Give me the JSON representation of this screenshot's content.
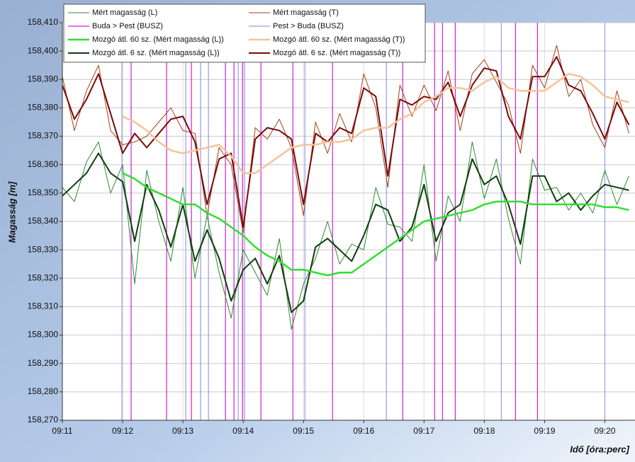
{
  "chart_data": {
    "type": "line",
    "y_label": "Magasság [m]",
    "x_label": "Idő [óra:perc]",
    "xlim": [
      11,
      20.5
    ],
    "ylim": [
      158.27,
      158.41
    ],
    "grid": true,
    "legend": "top-left",
    "xticks": [
      {
        "value": 11,
        "label": "09:11"
      },
      {
        "value": 12,
        "label": "09:12"
      },
      {
        "value": 13,
        "label": "09:13"
      },
      {
        "value": 14,
        "label": "09:14"
      },
      {
        "value": 15,
        "label": "09:15"
      },
      {
        "value": 16,
        "label": "09:16"
      },
      {
        "value": 17,
        "label": "09:17"
      },
      {
        "value": 18,
        "label": "09:18"
      },
      {
        "value": 19,
        "label": "09:19"
      },
      {
        "value": 20,
        "label": "09:20"
      }
    ],
    "yticks": [
      {
        "value": 158.41,
        "label": "158,410"
      },
      {
        "value": 158.4,
        "label": "158,400"
      },
      {
        "value": 158.39,
        "label": "158,390"
      },
      {
        "value": 158.38,
        "label": "158,380"
      },
      {
        "value": 158.37,
        "label": "158,370"
      },
      {
        "value": 158.36,
        "label": "158,360"
      },
      {
        "value": 158.35,
        "label": "158,350"
      },
      {
        "value": 158.34,
        "label": "158,340"
      },
      {
        "value": 158.33,
        "label": "158,330"
      },
      {
        "value": 158.32,
        "label": "158,320"
      },
      {
        "value": 158.31,
        "label": "158,310"
      },
      {
        "value": 158.3,
        "label": "158,300"
      },
      {
        "value": 158.29,
        "label": "158,290"
      },
      {
        "value": 158.28,
        "label": "158,280"
      },
      {
        "value": 158.27,
        "label": "158,270"
      }
    ],
    "x": [
      11,
      11.2,
      11.4,
      11.6,
      11.8,
      12,
      12.2,
      12.4,
      12.6,
      12.8,
      13,
      13.2,
      13.4,
      13.6,
      13.8,
      14,
      14.2,
      14.4,
      14.6,
      14.8,
      15,
      15.2,
      15.4,
      15.6,
      15.8,
      16,
      16.2,
      16.4,
      16.6,
      16.8,
      17,
      17.2,
      17.4,
      17.6,
      17.8,
      18,
      18.2,
      18.4,
      18.6,
      18.8,
      19,
      19.2,
      19.4,
      19.6,
      19.8,
      20,
      20.2,
      20.4
    ],
    "series": [
      {
        "name": "Mért magasság (L)",
        "color": "#2e8b2e",
        "line_width": 1,
        "values": [
          158.352,
          158.347,
          158.361,
          158.368,
          158.35,
          158.36,
          158.318,
          158.358,
          158.34,
          158.326,
          158.352,
          158.32,
          158.342,
          158.322,
          158.306,
          158.33,
          158.322,
          158.314,
          158.334,
          158.302,
          158.318,
          158.327,
          158.34,
          158.325,
          158.332,
          158.33,
          158.352,
          158.339,
          158.338,
          158.333,
          158.36,
          158.326,
          158.349,
          158.34,
          158.368,
          158.348,
          158.362,
          158.341,
          158.325,
          158.362,
          158.351,
          158.352,
          158.344,
          158.35,
          158.343,
          158.358,
          158.346,
          158.356
        ]
      },
      {
        "name": "Mért magasság (T)",
        "color": "#a0401a",
        "line_width": 1,
        "values": [
          158.391,
          158.372,
          158.386,
          158.395,
          158.372,
          158.367,
          158.368,
          158.37,
          158.375,
          158.38,
          158.372,
          158.371,
          158.342,
          158.366,
          158.36,
          158.336,
          158.373,
          158.369,
          158.376,
          158.366,
          158.342,
          158.375,
          158.364,
          158.378,
          158.368,
          158.392,
          158.38,
          158.352,
          158.388,
          158.377,
          158.388,
          158.379,
          158.393,
          158.372,
          158.392,
          158.397,
          158.389,
          158.381,
          158.364,
          158.395,
          158.387,
          158.402,
          158.384,
          158.39,
          158.374,
          158.366,
          158.386,
          158.371
        ]
      },
      {
        "name": "Buda > Pest (BUSZ)",
        "color": "#d020d0",
        "kind": "vline",
        "x": [
          12.141,
          12.729,
          13.141,
          13.706,
          13.847,
          13.988,
          14.294,
          14.824,
          15.482,
          16.647,
          17.176,
          17.306,
          17.518,
          18.518,
          18.882
        ]
      },
      {
        "name": "Pest > Buda (BUSZ)",
        "color": "#9a9ae6",
        "kind": "vline",
        "x": [
          11.988,
          13.047,
          13.294,
          13.424,
          13.918,
          14.024,
          15.024,
          16.376,
          18.282,
          20.0
        ]
      },
      {
        "name": "Mozgó átl. 60 sz. (Mért magasság (L))",
        "color": "#33dd33",
        "line_width": 2.5,
        "values": [
          null,
          null,
          null,
          null,
          null,
          158.357,
          158.355,
          158.352,
          158.35,
          158.348,
          158.346,
          158.346,
          158.343,
          158.341,
          158.338,
          158.335,
          158.331,
          158.328,
          158.326,
          158.323,
          158.323,
          158.322,
          158.321,
          158.322,
          158.322,
          158.325,
          158.328,
          158.331,
          158.334,
          158.337,
          158.34,
          158.341,
          158.342,
          158.343,
          158.344,
          158.346,
          158.347,
          158.347,
          158.347,
          158.346,
          158.346,
          158.346,
          158.346,
          158.346,
          158.346,
          158.345,
          158.345,
          158.344
        ]
      },
      {
        "name": "Mozgó átl. 60 sz. (Mért magasság (T))",
        "color": "#f5c39a",
        "line_width": 2.5,
        "values": [
          null,
          null,
          null,
          null,
          null,
          158.377,
          158.375,
          158.372,
          158.368,
          158.365,
          158.364,
          158.365,
          158.366,
          158.367,
          158.363,
          158.357,
          158.357,
          158.36,
          158.363,
          158.366,
          158.367,
          158.367,
          158.368,
          158.368,
          158.369,
          158.372,
          158.373,
          158.373,
          158.376,
          158.378,
          158.382,
          158.384,
          158.387,
          158.387,
          158.386,
          158.389,
          158.391,
          158.387,
          158.386,
          158.386,
          158.386,
          158.389,
          158.392,
          158.391,
          158.388,
          158.384,
          158.383,
          158.382
        ]
      },
      {
        "name": "Mozgó átl. 6 sz. (Mért magasság (L))",
        "color": "#0f3d0f",
        "line_width": 2,
        "values": [
          158.349,
          158.353,
          158.357,
          158.364,
          158.357,
          158.354,
          158.333,
          158.353,
          158.344,
          158.331,
          158.346,
          158.326,
          158.337,
          158.327,
          158.312,
          158.323,
          158.327,
          158.318,
          158.328,
          158.308,
          158.312,
          158.331,
          158.334,
          158.33,
          158.326,
          158.335,
          158.346,
          158.344,
          158.333,
          158.338,
          158.353,
          158.333,
          158.343,
          158.346,
          158.362,
          158.353,
          158.356,
          158.346,
          158.332,
          158.356,
          158.356,
          158.347,
          158.35,
          158.344,
          158.349,
          158.353,
          158.352,
          158.351
        ]
      },
      {
        "name": "Mozgó átl. 6 sz. (Mért magasság (T))",
        "color": "#7a0a0a",
        "line_width": 2,
        "values": [
          158.388,
          158.376,
          158.383,
          158.392,
          158.378,
          158.364,
          158.371,
          158.366,
          158.371,
          158.376,
          158.377,
          158.368,
          158.346,
          158.362,
          158.364,
          158.338,
          158.369,
          158.373,
          158.372,
          158.369,
          158.346,
          158.371,
          158.368,
          158.373,
          158.371,
          158.387,
          158.384,
          158.356,
          158.383,
          158.381,
          158.384,
          158.383,
          158.389,
          158.377,
          158.388,
          158.394,
          158.393,
          158.377,
          158.369,
          158.391,
          158.391,
          158.398,
          158.388,
          158.386,
          158.378,
          158.369,
          158.382,
          158.374
        ]
      }
    ]
  }
}
